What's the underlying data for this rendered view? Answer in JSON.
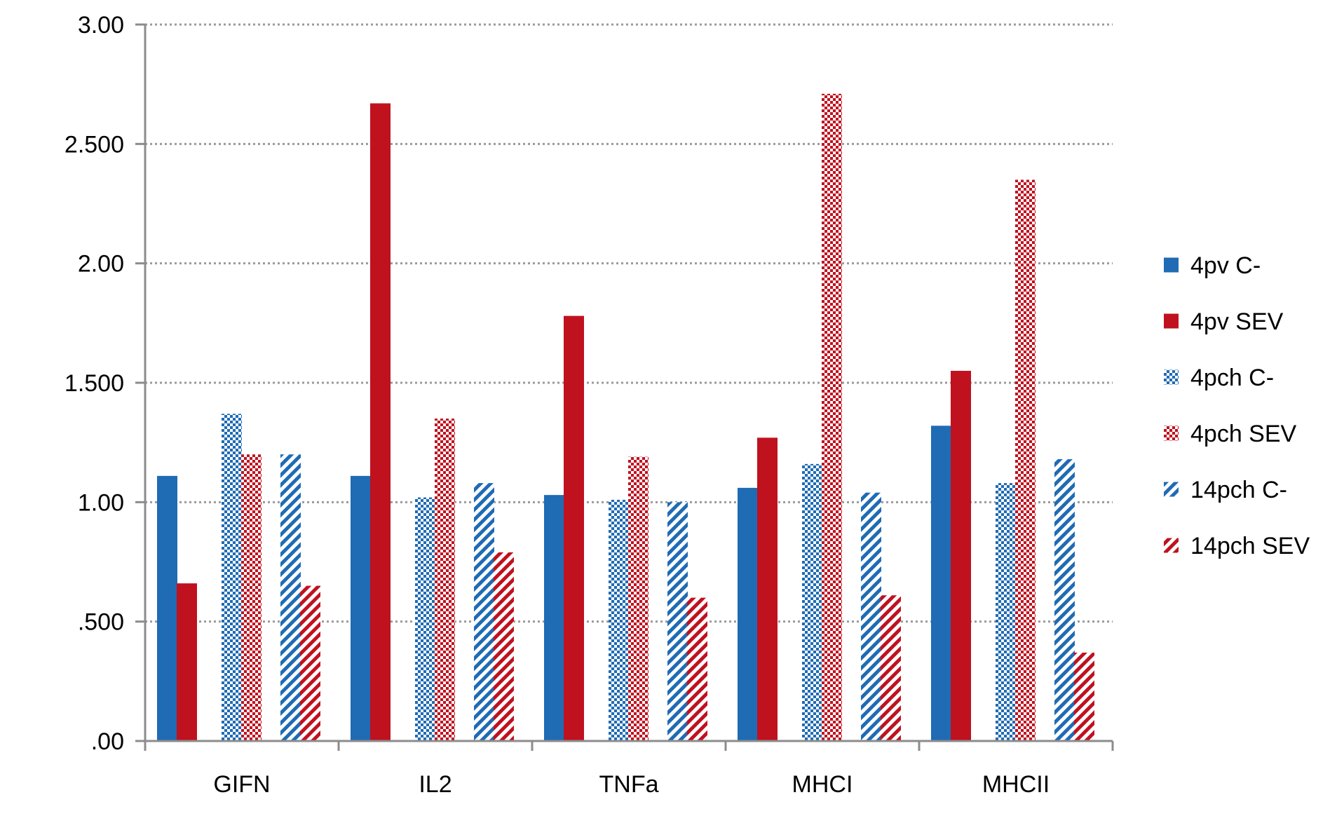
{
  "chart_data": {
    "type": "bar",
    "title": "",
    "xlabel": "",
    "ylabel": "",
    "categories": [
      "GIFN",
      "IL2",
      "TNFa",
      "MHCI",
      "MHCII"
    ],
    "ylim": [
      0,
      3.0
    ],
    "yticks": [
      0,
      0.5,
      1.0,
      1.5,
      2.0,
      2.5,
      3.0
    ],
    "ytick_labels": [
      ".00",
      ".500",
      "1.00",
      "1.500",
      "2.00",
      "2.500",
      "3.00"
    ],
    "grid": "horizontal dotted",
    "legend_position": "right",
    "series": [
      {
        "name": "4pv C-",
        "color": "#1f6bb4",
        "pattern": "solid",
        "values": [
          1.11,
          1.11,
          1.03,
          1.06,
          1.32
        ]
      },
      {
        "name": "4pv SEV",
        "color": "#c0111f",
        "pattern": "solid",
        "values": [
          0.66,
          2.67,
          1.78,
          1.27,
          1.55
        ]
      },
      {
        "name": "4pch C-",
        "color": "#1f6bb4",
        "pattern": "dotted",
        "values": [
          1.37,
          1.02,
          1.01,
          1.16,
          1.08
        ]
      },
      {
        "name": "4pch SEV",
        "color": "#c0111f",
        "pattern": "dotted",
        "values": [
          1.2,
          1.35,
          1.19,
          2.71,
          2.35
        ]
      },
      {
        "name": "14pch C-",
        "color": "#1f6bb4",
        "pattern": "diagonal",
        "values": [
          1.2,
          1.08,
          1.0,
          1.04,
          1.18
        ]
      },
      {
        "name": "14pch SEV",
        "color": "#c0111f",
        "pattern": "diagonal",
        "values": [
          0.65,
          0.79,
          0.6,
          0.61,
          0.37
        ]
      }
    ]
  }
}
